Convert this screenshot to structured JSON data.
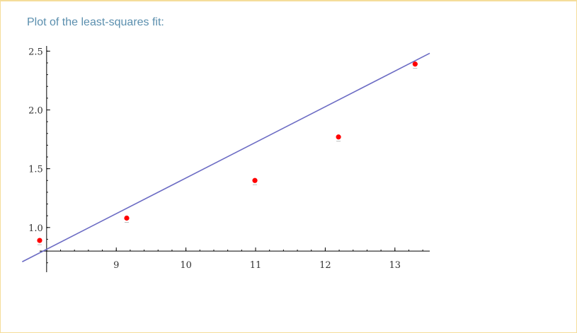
{
  "pod": {
    "title": "Plot of the least-squares fit:"
  },
  "chart_data": {
    "type": "scatter",
    "title": "",
    "xlabel": "",
    "ylabel": "",
    "xlim": [
      7.9,
      13.5
    ],
    "ylim": [
      0.62,
      2.52
    ],
    "grid": false,
    "axes_origin": {
      "x": 8.0,
      "y": 0.8
    },
    "x_ticks": [
      9,
      10,
      11,
      12,
      13
    ],
    "y_ticks": [
      "1.0",
      "1.5",
      "2.0",
      "2.5"
    ],
    "points": [
      {
        "x": 7.9,
        "y": 0.89
      },
      {
        "x": 9.15,
        "y": 1.08
      },
      {
        "x": 10.99,
        "y": 1.4
      },
      {
        "x": 12.19,
        "y": 1.77
      },
      {
        "x": 13.29,
        "y": 2.39
      }
    ],
    "fit_line": {
      "slope": 0.3031,
      "intercept": -1.61,
      "x_range": [
        7.65,
        13.5
      ]
    },
    "colors": {
      "points": "#ff0000",
      "fit_line": "#6c6cc4",
      "axes": "#000000",
      "title": "#5b8fae"
    }
  }
}
